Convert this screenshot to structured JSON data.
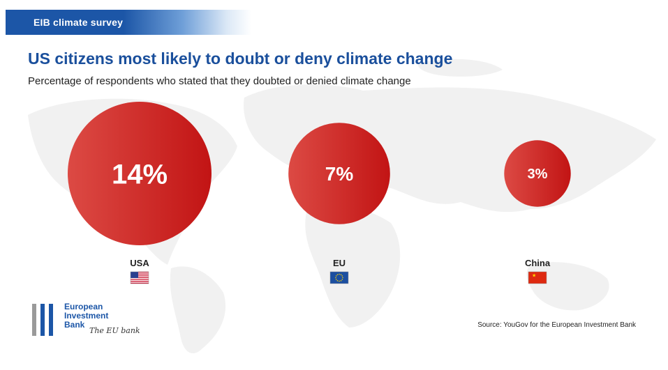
{
  "header": {
    "banner_text": "EIB climate survey",
    "title": "US citizens most likely to doubt or deny climate change",
    "subtitle": "Percentage of respondents who stated that they doubted or denied climate change"
  },
  "chart_data": {
    "type": "bubble",
    "title": "US citizens most likely to doubt or deny climate change",
    "subtitle": "Percentage of respondents who stated that they doubted or denied climate change",
    "unit": "%",
    "categories": [
      "USA",
      "EU",
      "China"
    ],
    "values": [
      14,
      7,
      3
    ],
    "labels": [
      "14%",
      "7%",
      "3%"
    ],
    "flags": [
      "us-flag-icon",
      "eu-flag-icon",
      "china-flag-icon"
    ]
  },
  "colors": {
    "brand": "#1c56a7",
    "bubble": "#cc1f1f",
    "map": "#f1f1f1"
  },
  "footer": {
    "logo_name": "European\nInvestment\nBank",
    "logo_tagline": "The EU bank",
    "source": "Source: YouGov for the European Investment Bank"
  }
}
